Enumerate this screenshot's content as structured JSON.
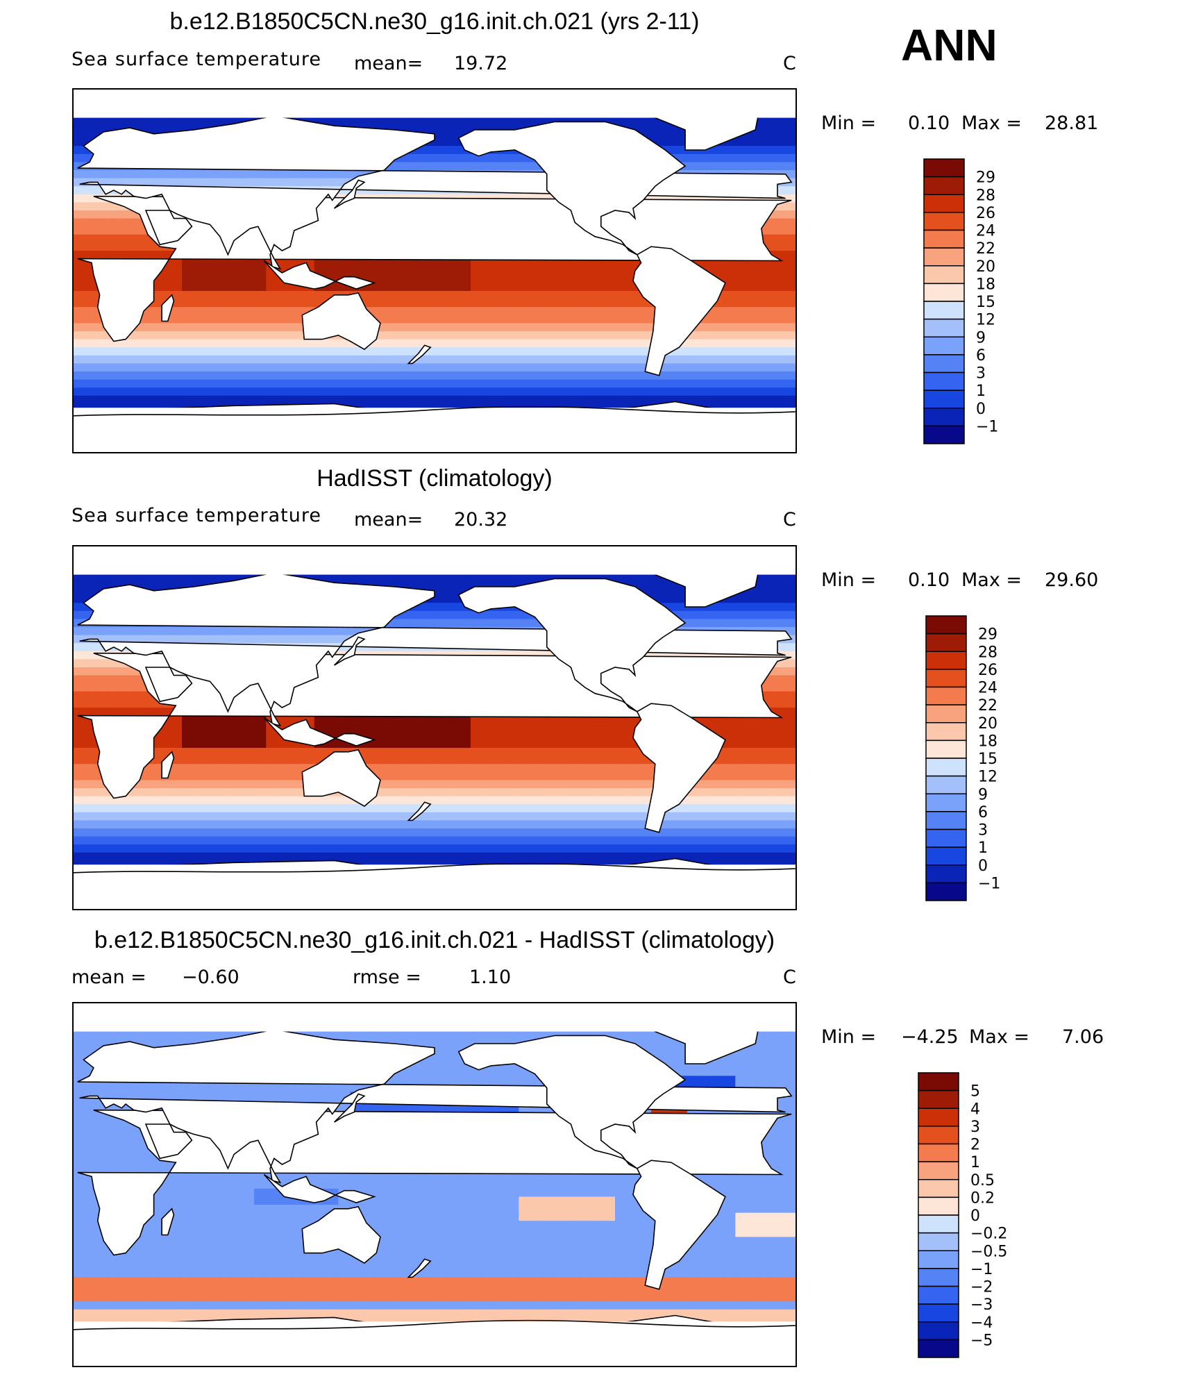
{
  "season": "ANN",
  "colors": {
    "seq": [
      "#08088a",
      "#0a24b8",
      "#1846e0",
      "#3565f0",
      "#5583f5",
      "#7aa2fb",
      "#a3c0fb",
      "#cfe2fb",
      "#fde6d8",
      "#fcc8ac",
      "#f9a27e",
      "#f37b4e",
      "#e4511e",
      "#cc3008",
      "#9e1c06",
      "#7a0a04"
    ],
    "diff": [
      "#08088a",
      "#0a24b8",
      "#1846e0",
      "#3565f0",
      "#5583f5",
      "#7aa2fb",
      "#a3c0fb",
      "#cfe2fb",
      "#fde6d8",
      "#fcc8ac",
      "#f9a27e",
      "#f37b4e",
      "#e4511e",
      "#cc3008",
      "#9e1c06",
      "#7a0a04"
    ]
  },
  "panels": [
    {
      "title": "b.e12.B1850C5CN.ne30_g16.init.ch.021 (yrs 2-11)",
      "variable": "Sea surface temperature",
      "stat_label": "mean=",
      "stat_value": "19.72",
      "stat2_label": "",
      "stat2_value": "",
      "units": "C",
      "min_label": "Min =",
      "min_value": "0.10",
      "max_label": "Max =",
      "max_value": "28.81",
      "colorbar_labels": [
        "29",
        "28",
        "26",
        "24",
        "22",
        "20",
        "18",
        "15",
        "12",
        "9",
        "6",
        "3",
        "1",
        "0",
        "−1"
      ]
    },
    {
      "title": "HadISST (climatology)",
      "variable": "Sea surface temperature",
      "stat_label": "mean=",
      "stat_value": "20.32",
      "stat2_label": "",
      "stat2_value": "",
      "units": "C",
      "min_label": "Min =",
      "min_value": "0.10",
      "max_label": "Max =",
      "max_value": "29.60",
      "colorbar_labels": [
        "29",
        "28",
        "26",
        "24",
        "22",
        "20",
        "18",
        "15",
        "12",
        "9",
        "6",
        "3",
        "1",
        "0",
        "−1"
      ]
    },
    {
      "title": "b.e12.B1850C5CN.ne30_g16.init.ch.021 - HadISST (climatology)",
      "variable": "",
      "stat_label": "mean =",
      "stat_value": "−0.60",
      "stat2_label": "rmse =",
      "stat2_value": "1.10",
      "units": "C",
      "min_label": "Min =",
      "min_value": "−4.25",
      "max_label": "Max =",
      "max_value": "7.06",
      "colorbar_labels": [
        "5",
        "4",
        "3",
        "2",
        "1",
        "0.5",
        "0.2",
        "0",
        "−0.2",
        "−0.5",
        "−1",
        "−2",
        "−3",
        "−4",
        "−5"
      ]
    }
  ],
  "chart_data": [
    {
      "type": "heatmap",
      "title": "b.e12.B1850C5CN.ne30_g16.init.ch.021 (yrs 2-11)",
      "subtitle": "Sea surface temperature",
      "units": "C",
      "mean": 19.72,
      "min": 0.1,
      "max": 28.81,
      "contour_levels": [
        -1,
        0,
        1,
        3,
        6,
        9,
        12,
        15,
        18,
        20,
        22,
        24,
        26,
        28,
        29
      ]
    },
    {
      "type": "heatmap",
      "title": "HadISST (climatology)",
      "subtitle": "Sea surface temperature",
      "units": "C",
      "mean": 20.32,
      "min": 0.1,
      "max": 29.6,
      "contour_levels": [
        -1,
        0,
        1,
        3,
        6,
        9,
        12,
        15,
        18,
        20,
        22,
        24,
        26,
        28,
        29
      ]
    },
    {
      "type": "heatmap",
      "title": "b.e12.B1850C5CN.ne30_g16.init.ch.021 - HadISST (climatology)",
      "units": "C",
      "mean": -0.6,
      "rmse": 1.1,
      "min": -4.25,
      "max": 7.06,
      "contour_levels": [
        -5,
        -4,
        -3,
        -2,
        -1,
        -0.5,
        -0.2,
        0,
        0.2,
        0.5,
        1,
        2,
        3,
        4,
        5
      ]
    }
  ]
}
